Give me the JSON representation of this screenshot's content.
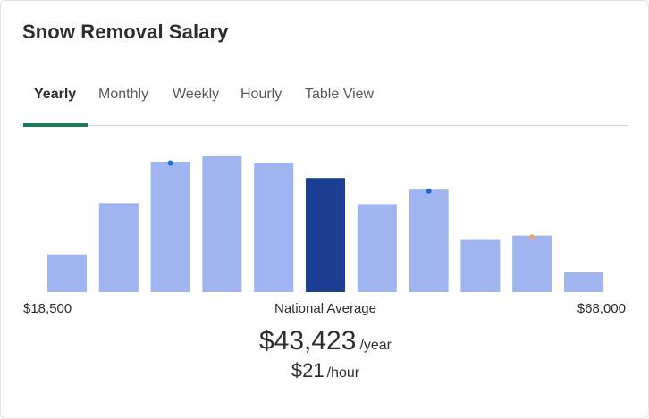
{
  "title": "Snow Removal Salary",
  "tabs": [
    {
      "label": "Yearly",
      "active": true
    },
    {
      "label": "Monthly",
      "active": false
    },
    {
      "label": "Weekly",
      "active": false
    },
    {
      "label": "Hourly",
      "active": false
    },
    {
      "label": "Table View",
      "active": false
    }
  ],
  "colors": {
    "bar": "#9fb4f0",
    "bar_highlight": "#1c3f94",
    "dot_blue": "#1a6bd6",
    "dot_orange": "#f0a36b",
    "tab_indicator": "#1e7a5f"
  },
  "chart_data": {
    "type": "bar",
    "values": [
      42,
      99,
      145,
      151,
      144,
      127,
      98,
      114,
      58,
      63,
      22
    ],
    "highlight_index": 5,
    "markers": [
      {
        "index": 2,
        "color": "blue"
      },
      {
        "index": 7,
        "color": "blue"
      },
      {
        "index": 9,
        "color": "orange"
      }
    ],
    "x_min_label": "$18,500",
    "x_max_label": "$68,000",
    "center_label": "National Average"
  },
  "average": {
    "yearly_value": "$43,423",
    "yearly_unit": "/year",
    "hourly_value": "$21",
    "hourly_unit": "/hour"
  }
}
